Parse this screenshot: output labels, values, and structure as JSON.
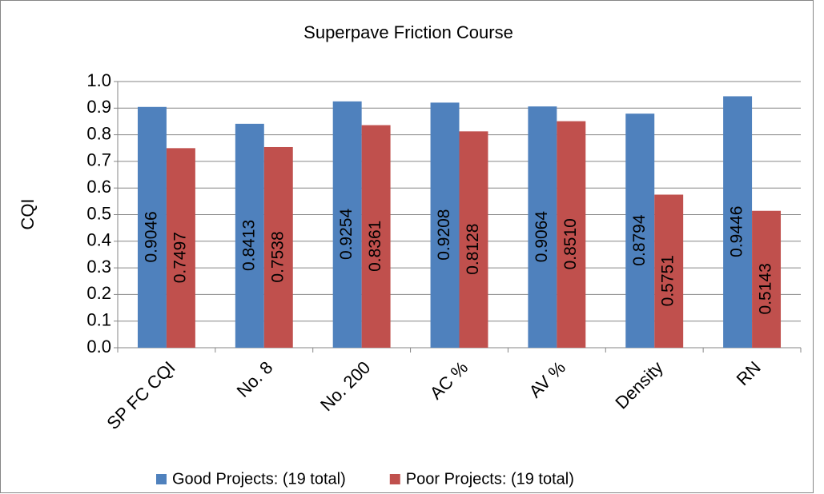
{
  "chart_data": {
    "type": "bar",
    "title": "Superpave Friction Course",
    "y_label": "CQI",
    "categories": [
      "SP FC CQI",
      "No. 8",
      "No. 200",
      "AC %",
      "AV %",
      "Density",
      "RN"
    ],
    "series": [
      {
        "name": "Good Projects: (19 total)",
        "color": "#4f81bd",
        "values": [
          0.9046,
          0.8413,
          0.9254,
          0.9208,
          0.9064,
          0.8794,
          0.9446
        ]
      },
      {
        "name": "Poor Projects: (19 total)",
        "color": "#c0504d",
        "values": [
          0.7497,
          0.7538,
          0.8361,
          0.8128,
          0.851,
          0.5751,
          0.5143
        ],
        "value_labels": [
          "0.7497",
          "0.7538",
          "0.8361",
          "0.8128",
          "0.8510",
          "0.5751",
          "0.5143"
        ]
      }
    ],
    "ylim": [
      0,
      1
    ],
    "yticks": [
      {
        "value": 0,
        "label": "0.0"
      },
      0.1,
      0.2,
      0.3,
      0.4,
      0.5,
      0.6,
      0.7,
      0.8,
      0.9,
      {
        "value": 1,
        "label": "1.0"
      }
    ],
    "grid": true,
    "legend": "bottom"
  }
}
